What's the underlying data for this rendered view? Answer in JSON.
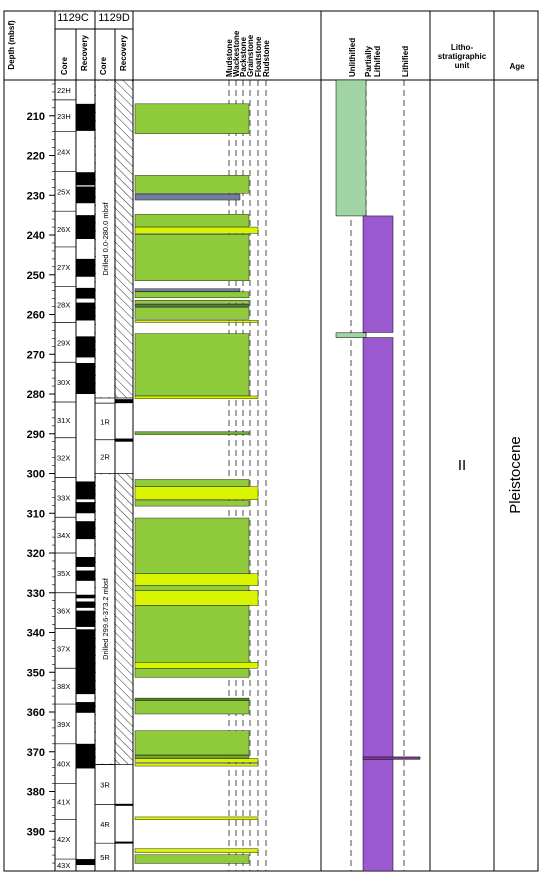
{
  "header": {
    "depth_label": "Depth (mbsf)",
    "hole_c": "1129C",
    "hole_d": "1129D",
    "core_c": "Core",
    "recovery_c": "Recovery",
    "core_d": "Core",
    "recovery_d": "Recovery",
    "texture_labels": [
      "Mudstone",
      "Wackestone",
      "Packstone",
      "Grainstone",
      "Floatstone",
      "Rudstone"
    ],
    "lithification_labels": [
      "Unlithified",
      "Partially Lithified",
      "Lithified"
    ],
    "unit_label": "Litho-\nstratigraphic\nunit",
    "age_label": "Age"
  },
  "depth_ticks": [
    210,
    220,
    230,
    240,
    250,
    260,
    270,
    280,
    290,
    300,
    310,
    320,
    330,
    340,
    350,
    360,
    370,
    380,
    390
  ],
  "depth_range": [
    201,
    400
  ],
  "cores_c": [
    {
      "label": "22H",
      "top": 201,
      "bottom": 206
    },
    {
      "label": "23H",
      "top": 206,
      "bottom": 214
    },
    {
      "label": "24X",
      "top": 214,
      "bottom": 224
    },
    {
      "label": "25X",
      "top": 224,
      "bottom": 234
    },
    {
      "label": "26X",
      "top": 234,
      "bottom": 243
    },
    {
      "label": "27X",
      "top": 243,
      "bottom": 253
    },
    {
      "label": "28X",
      "top": 253,
      "bottom": 262
    },
    {
      "label": "29X",
      "top": 262,
      "bottom": 272
    },
    {
      "label": "30X",
      "top": 272,
      "bottom": 282
    },
    {
      "label": "31X",
      "top": 282,
      "bottom": 291
    },
    {
      "label": "32X",
      "top": 291,
      "bottom": 301
    },
    {
      "label": "33X",
      "top": 301,
      "bottom": 311
    },
    {
      "label": "34X",
      "top": 311,
      "bottom": 320
    },
    {
      "label": "35X",
      "top": 320,
      "bottom": 330
    },
    {
      "label": "36X",
      "top": 330,
      "bottom": 339
    },
    {
      "label": "37X",
      "top": 339,
      "bottom": 349
    },
    {
      "label": "38X",
      "top": 349,
      "bottom": 358
    },
    {
      "label": "39X",
      "top": 358,
      "bottom": 368
    },
    {
      "label": "40X",
      "top": 368,
      "bottom": 378
    },
    {
      "label": "41X",
      "top": 378,
      "bottom": 387
    },
    {
      "label": "42X",
      "top": 387,
      "bottom": 397
    },
    {
      "label": "43X",
      "top": 397,
      "bottom": 400
    }
  ],
  "recovery_c": [
    [
      207,
      213.8
    ],
    [
      224.2,
      227.5
    ],
    [
      227.8,
      232
    ],
    [
      235,
      241
    ],
    [
      246,
      250.5
    ],
    [
      253.3,
      256
    ],
    [
      257,
      261.5
    ],
    [
      265.5,
      270.8
    ],
    [
      272.2,
      280
    ],
    [
      302,
      306.5
    ],
    [
      307.2,
      310
    ],
    [
      312,
      316.5
    ],
    [
      321,
      323.5
    ],
    [
      324.4,
      327
    ],
    [
      330.5,
      331.4
    ],
    [
      332.2,
      333.8
    ],
    [
      334.5,
      338.6
    ],
    [
      339.2,
      355.5
    ],
    [
      357.5,
      360.2
    ],
    [
      368,
      374.2
    ],
    [
      397,
      398.5
    ]
  ],
  "drilled_intervals": [
    {
      "label": "Drilled 0.0-280.0 mbsf",
      "top": 201,
      "bottom": 281
    },
    {
      "label": "Drilled 299.6-373.2 mbsf",
      "top": 300,
      "bottom": 373.2
    }
  ],
  "cores_d": [
    {
      "label": "1R",
      "top": 282.3,
      "bottom": 291.5
    },
    {
      "label": "2R",
      "top": 291.5,
      "bottom": 300
    },
    {
      "label": "3R",
      "top": 373.2,
      "bottom": 383.3
    },
    {
      "label": "4R",
      "top": 383.3,
      "bottom": 393
    },
    {
      "label": "5R",
      "top": 393,
      "bottom": 400
    }
  ],
  "recovery_d": [
    [
      281.3,
      282.3
    ],
    [
      291.2,
      292
    ],
    [
      383.1,
      383.6
    ],
    [
      392.6,
      393.1
    ]
  ],
  "lithology": [
    {
      "top": 207,
      "bottom": 214.5,
      "texture": "packstone"
    },
    {
      "top": 225,
      "bottom": 229.5,
      "texture": "packstone"
    },
    {
      "top": 229.7,
      "bottom": 231.2,
      "texture": "mudstone-gray"
    },
    {
      "top": 234.8,
      "bottom": 238,
      "texture": "packstone"
    },
    {
      "top": 238,
      "bottom": 239.6,
      "texture": "grainstone-yellow"
    },
    {
      "top": 239.8,
      "bottom": 251.5,
      "texture": "packstone"
    },
    {
      "top": 253.5,
      "bottom": 254.2,
      "texture": "mudstone-gray"
    },
    {
      "top": 254.3,
      "bottom": 255.8,
      "texture": "packstone"
    },
    {
      "top": 256.4,
      "bottom": 257.2,
      "texture": "packstone"
    },
    {
      "top": 257.4,
      "bottom": 258.1,
      "texture": "packstone-dark"
    },
    {
      "top": 258.3,
      "bottom": 261.2,
      "texture": "packstone"
    },
    {
      "top": 261.5,
      "bottom": 262,
      "texture": "grainstone-yellow"
    },
    {
      "top": 264.8,
      "bottom": 280.5,
      "texture": "packstone"
    },
    {
      "top": 280.5,
      "bottom": 281.2,
      "texture": "grainstone-yellow"
    },
    {
      "top": 289.5,
      "bottom": 290.2,
      "texture": "packstone-thin"
    },
    {
      "top": 301.5,
      "bottom": 303.3,
      "texture": "packstone"
    },
    {
      "top": 303.3,
      "bottom": 306.6,
      "texture": "grainstone-yellow"
    },
    {
      "top": 306.8,
      "bottom": 308.2,
      "texture": "packstone"
    },
    {
      "top": 311.2,
      "bottom": 325.2,
      "texture": "packstone"
    },
    {
      "top": 325.2,
      "bottom": 328.2,
      "texture": "grainstone-yellow"
    },
    {
      "top": 328.2,
      "bottom": 329.5,
      "texture": "packstone"
    },
    {
      "top": 329.5,
      "bottom": 333.2,
      "texture": "grainstone-yellow"
    },
    {
      "top": 333.2,
      "bottom": 347.5,
      "texture": "packstone"
    },
    {
      "top": 347.5,
      "bottom": 349,
      "texture": "grainstone-yellow"
    },
    {
      "top": 349,
      "bottom": 351.3,
      "texture": "packstone"
    },
    {
      "top": 356.5,
      "bottom": 357.1,
      "texture": "packstone-dark"
    },
    {
      "top": 357.1,
      "bottom": 360.5,
      "texture": "packstone"
    },
    {
      "top": 364.7,
      "bottom": 370.8,
      "texture": "packstone"
    },
    {
      "top": 370.9,
      "bottom": 371.6,
      "texture": "packstone-thin"
    },
    {
      "top": 371.7,
      "bottom": 372.7,
      "texture": "grainstone-yellow"
    },
    {
      "top": 373,
      "bottom": 373.6,
      "texture": "grainstone-yellow"
    },
    {
      "top": 386.4,
      "bottom": 387.1,
      "texture": "grainstone-yellow"
    },
    {
      "top": 394.4,
      "bottom": 395.4,
      "texture": "grainstone-yellow"
    },
    {
      "top": 395.9,
      "bottom": 398.1,
      "texture": "packstone"
    }
  ],
  "lithification": [
    {
      "top": 201,
      "bottom": 235.2,
      "state": "unlithified"
    },
    {
      "top": 235.2,
      "bottom": 264.5,
      "state": "partially"
    },
    {
      "top": 264.6,
      "bottom": 265.8,
      "state": "unlithified"
    },
    {
      "top": 265.8,
      "bottom": 371.5,
      "state": "partially"
    },
    {
      "top": 371.3,
      "bottom": 371.9,
      "state": "lithified"
    },
    {
      "top": 371.9,
      "bottom": 400,
      "state": "partially"
    }
  ],
  "unit": "II",
  "age": "Pleistocene",
  "colors": {
    "packstone": "#8fcb3a",
    "packstone-dark": "#4f8a22",
    "packstone-thin": "#6fae2e",
    "grainstone-yellow": "#d9f400",
    "mudstone-gray": "#6f7f9c",
    "unlithified": "#a0d4a4",
    "partially": "#9b59d0",
    "lithified": "#7b3a8c",
    "recovery": "#000000"
  }
}
